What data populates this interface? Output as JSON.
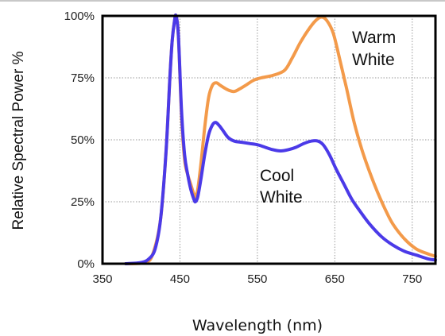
{
  "chart_data": {
    "type": "line",
    "title": "",
    "xlabel": "Wavelength (nm)",
    "ylabel": "Relative Spectral Power %",
    "xlim": [
      350,
      780
    ],
    "ylim": [
      0,
      100
    ],
    "x_ticks": [
      "350",
      "450",
      "550",
      "650",
      "750"
    ],
    "x_tick_values": [
      350,
      450,
      550,
      650,
      750
    ],
    "y_ticks": [
      "0%",
      "25%",
      "50%",
      "75%",
      "100%"
    ],
    "y_tick_values": [
      0,
      25,
      50,
      75,
      100
    ],
    "grid": true,
    "legend": "none",
    "annotations": [
      {
        "id": "warm",
        "lines": [
          "Warm",
          "White"
        ]
      },
      {
        "id": "cool",
        "lines": [
          "Cool",
          "White"
        ]
      }
    ],
    "series": [
      {
        "name": "Warm White",
        "color": "#f39a4a",
        "points": [
          [
            380,
            0
          ],
          [
            405,
            0.5
          ],
          [
            415,
            4
          ],
          [
            425,
            18
          ],
          [
            432,
            45
          ],
          [
            437,
            75
          ],
          [
            440,
            90
          ],
          [
            443,
            98
          ],
          [
            445,
            100
          ],
          [
            448,
            92
          ],
          [
            452,
            60
          ],
          [
            456,
            42
          ],
          [
            460,
            36
          ],
          [
            464,
            32
          ],
          [
            468,
            28
          ],
          [
            470,
            27
          ],
          [
            473,
            30
          ],
          [
            477,
            40
          ],
          [
            482,
            55
          ],
          [
            487,
            67
          ],
          [
            492,
            72
          ],
          [
            497,
            73
          ],
          [
            502,
            72
          ],
          [
            507,
            71
          ],
          [
            513,
            70
          ],
          [
            520,
            69.5
          ],
          [
            527,
            70.5
          ],
          [
            535,
            72
          ],
          [
            545,
            74
          ],
          [
            555,
            75
          ],
          [
            570,
            76
          ],
          [
            585,
            78
          ],
          [
            595,
            83
          ],
          [
            605,
            89
          ],
          [
            615,
            94
          ],
          [
            625,
            98
          ],
          [
            633,
            99.5
          ],
          [
            640,
            98
          ],
          [
            648,
            93
          ],
          [
            656,
            83
          ],
          [
            665,
            71
          ],
          [
            675,
            57
          ],
          [
            685,
            46
          ],
          [
            695,
            37
          ],
          [
            705,
            29
          ],
          [
            715,
            22
          ],
          [
            725,
            16
          ],
          [
            740,
            10
          ],
          [
            755,
            6
          ],
          [
            770,
            4
          ],
          [
            780,
            3
          ]
        ]
      },
      {
        "name": "Cool White",
        "color": "#4b3ae8",
        "points": [
          [
            380,
            0
          ],
          [
            400,
            0.5
          ],
          [
            410,
            2
          ],
          [
            418,
            6
          ],
          [
            425,
            18
          ],
          [
            432,
            45
          ],
          [
            437,
            75
          ],
          [
            440,
            90
          ],
          [
            443,
            98
          ],
          [
            445,
            100
          ],
          [
            448,
            92
          ],
          [
            452,
            62
          ],
          [
            456,
            44
          ],
          [
            460,
            36
          ],
          [
            464,
            30
          ],
          [
            468,
            26
          ],
          [
            470,
            25
          ],
          [
            473,
            27
          ],
          [
            477,
            34
          ],
          [
            482,
            44
          ],
          [
            487,
            52
          ],
          [
            492,
            56
          ],
          [
            496,
            57
          ],
          [
            500,
            56
          ],
          [
            505,
            54
          ],
          [
            512,
            51
          ],
          [
            520,
            49.5
          ],
          [
            530,
            49
          ],
          [
            540,
            48.5
          ],
          [
            550,
            48
          ],
          [
            560,
            47
          ],
          [
            570,
            46
          ],
          [
            580,
            45.5
          ],
          [
            590,
            46
          ],
          [
            600,
            47
          ],
          [
            610,
            48.5
          ],
          [
            620,
            49.5
          ],
          [
            628,
            49.5
          ],
          [
            635,
            48
          ],
          [
            643,
            44
          ],
          [
            652,
            38
          ],
          [
            662,
            32
          ],
          [
            672,
            26
          ],
          [
            683,
            21
          ],
          [
            695,
            16
          ],
          [
            710,
            11
          ],
          [
            725,
            7.5
          ],
          [
            740,
            5
          ],
          [
            755,
            3.5
          ],
          [
            770,
            2
          ],
          [
            780,
            1.5
          ]
        ]
      }
    ]
  }
}
